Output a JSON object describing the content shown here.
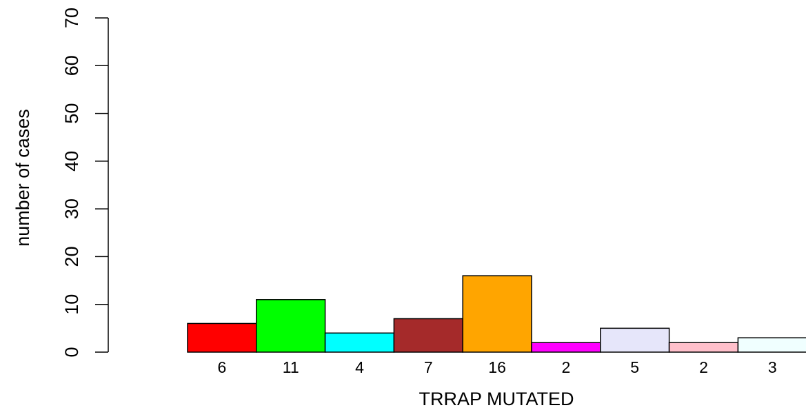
{
  "chart_data": {
    "type": "bar",
    "title": "",
    "xlabel": "TRRAP MUTATED",
    "ylabel": "number of cases",
    "ylim": [
      0,
      70
    ],
    "yticks": [
      0,
      10,
      20,
      30,
      40,
      50,
      60,
      70
    ],
    "categories": [
      "6",
      "11",
      "4",
      "7",
      "16",
      "2",
      "5",
      "2",
      "3"
    ],
    "values": [
      6,
      11,
      4,
      7,
      16,
      2,
      5,
      2,
      3
    ],
    "colors": [
      "#ff0000",
      "#00ff00",
      "#00ffff",
      "#a52a2a",
      "#ffa500",
      "#ff00ff",
      "#e6e6fa",
      "#ffc0cb",
      "#f0ffff"
    ],
    "grid": false,
    "legend": "none"
  }
}
